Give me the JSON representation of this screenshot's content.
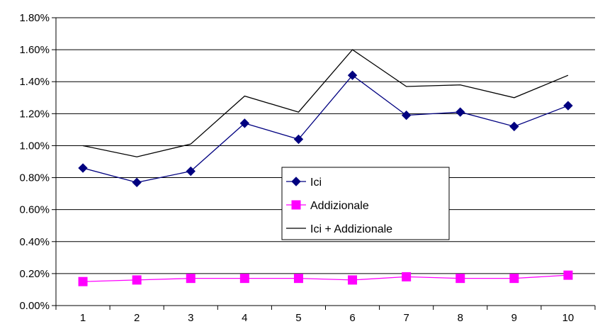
{
  "chart_data": {
    "type": "line",
    "title": "",
    "xlabel": "",
    "ylabel": "",
    "categories": [
      "1",
      "2",
      "3",
      "4",
      "5",
      "6",
      "7",
      "8",
      "9",
      "10"
    ],
    "y_ticks": [
      "0.00%",
      "0.20%",
      "0.40%",
      "0.60%",
      "0.80%",
      "1.00%",
      "1.20%",
      "1.40%",
      "1.60%",
      "1.80%"
    ],
    "ylim": [
      0,
      1.8
    ],
    "y_unit": "%",
    "grid": true,
    "legend_position": "center",
    "series": [
      {
        "name": "Ici",
        "color": "#000080",
        "marker": "diamond",
        "values": [
          0.86,
          0.77,
          0.84,
          1.14,
          1.04,
          1.44,
          1.19,
          1.21,
          1.12,
          1.25
        ]
      },
      {
        "name": "Addizionale",
        "color": "#FF00FF",
        "marker": "square",
        "values": [
          0.15,
          0.16,
          0.17,
          0.17,
          0.17,
          0.16,
          0.18,
          0.17,
          0.17,
          0.19
        ]
      },
      {
        "name": "Ici + Addizionale",
        "color": "#000000",
        "marker": "none",
        "values": [
          1.0,
          0.93,
          1.01,
          1.31,
          1.21,
          1.6,
          1.37,
          1.38,
          1.3,
          1.44
        ]
      }
    ]
  }
}
